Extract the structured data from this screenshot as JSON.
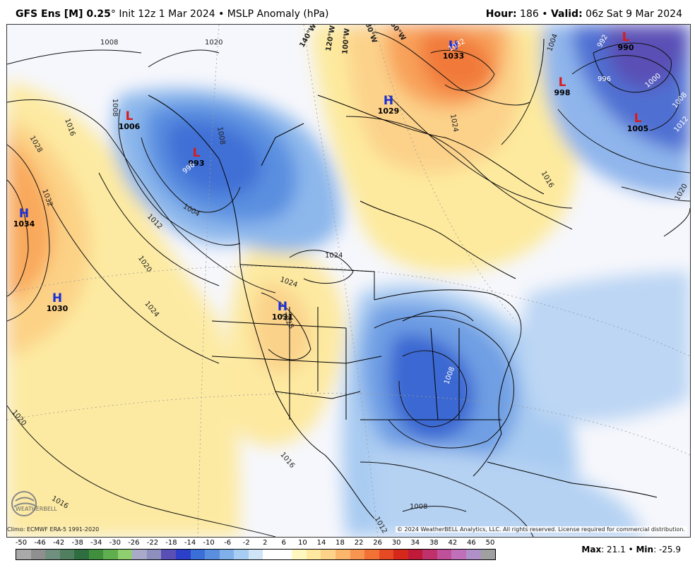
{
  "header": {
    "model_bold": "GFS Ens [M] 0.25",
    "degree": "°",
    "init_text": " Init 12z 1 Mar 2024 • MSLP Anomaly (hPa)",
    "hour_label": "Hour:",
    "hour_value": " 186 • ",
    "valid_label": "Valid:",
    "valid_value": " 06z Sat 9 Mar 2024"
  },
  "pressure_centers": [
    {
      "type": "H",
      "value": "1033"
    },
    {
      "type": "H",
      "value": "1029"
    },
    {
      "type": "L",
      "value": "990"
    },
    {
      "type": "L",
      "value": "998"
    },
    {
      "type": "L",
      "value": "1005"
    },
    {
      "type": "L",
      "value": "1006"
    },
    {
      "type": "L",
      "value": "993"
    },
    {
      "type": "H",
      "value": "1034"
    },
    {
      "type": "H",
      "value": "1030"
    },
    {
      "type": "H",
      "value": "1031"
    }
  ],
  "isobar_labels": [
    "1008",
    "1020",
    "1008",
    "1016",
    "1028",
    "1032",
    "1008",
    "996",
    "1004",
    "1012",
    "1020",
    "1024",
    "1024",
    "1024",
    "1028",
    "1020",
    "1016",
    "1016",
    "1008",
    "1008",
    "1012",
    "1004",
    "1024",
    "1016",
    "1020",
    "992",
    "996",
    "1000",
    "1008",
    "1012",
    "1032",
    "140°W",
    "120°W",
    "100°W",
    "80°W",
    "60°W"
  ],
  "footer": {
    "climo": "Climo: ECMWF ERA-5 1991-2020",
    "copyright": "© 2024 WeatherBELL Analytics, LLC. All rights reserved. License required for commercial distribution.",
    "logo_text": "WEATHERBELL",
    "max_label": "Max",
    "max_value": ": 21.1 • ",
    "min_label": "Min",
    "min_value": ": -25.9"
  },
  "colorbar": {
    "ticks": [
      "-50",
      "-46",
      "-42",
      "-38",
      "-34",
      "-30",
      "-26",
      "-22",
      "-18",
      "-14",
      "-10",
      "-6",
      "-2",
      "2",
      "6",
      "10",
      "14",
      "18",
      "22",
      "26",
      "30",
      "34",
      "38",
      "42",
      "46",
      "50"
    ],
    "colors": [
      "#a9a9a9",
      "#8f8f8f",
      "#6f8f7f",
      "#4f7f5f",
      "#2f6f3f",
      "#3f8f3f",
      "#5faf4f",
      "#8fcf6f",
      "#a9a9c9",
      "#8f8fbf",
      "#5a4fb5",
      "#2b3fc8",
      "#3a6fd8",
      "#5a8fe0",
      "#7fb0ea",
      "#a8cdf2",
      "#d0e4f8",
      "#ffffff",
      "#ffffff",
      "#fff7c0",
      "#ffe8a0",
      "#fdd38a",
      "#fbb66e",
      "#f89550",
      "#f27236",
      "#e64a24",
      "#d6281a",
      "#c01a3a",
      "#c0306a",
      "#c0509a",
      "#c070b8",
      "#b090c8",
      "#a0a0a0"
    ]
  }
}
